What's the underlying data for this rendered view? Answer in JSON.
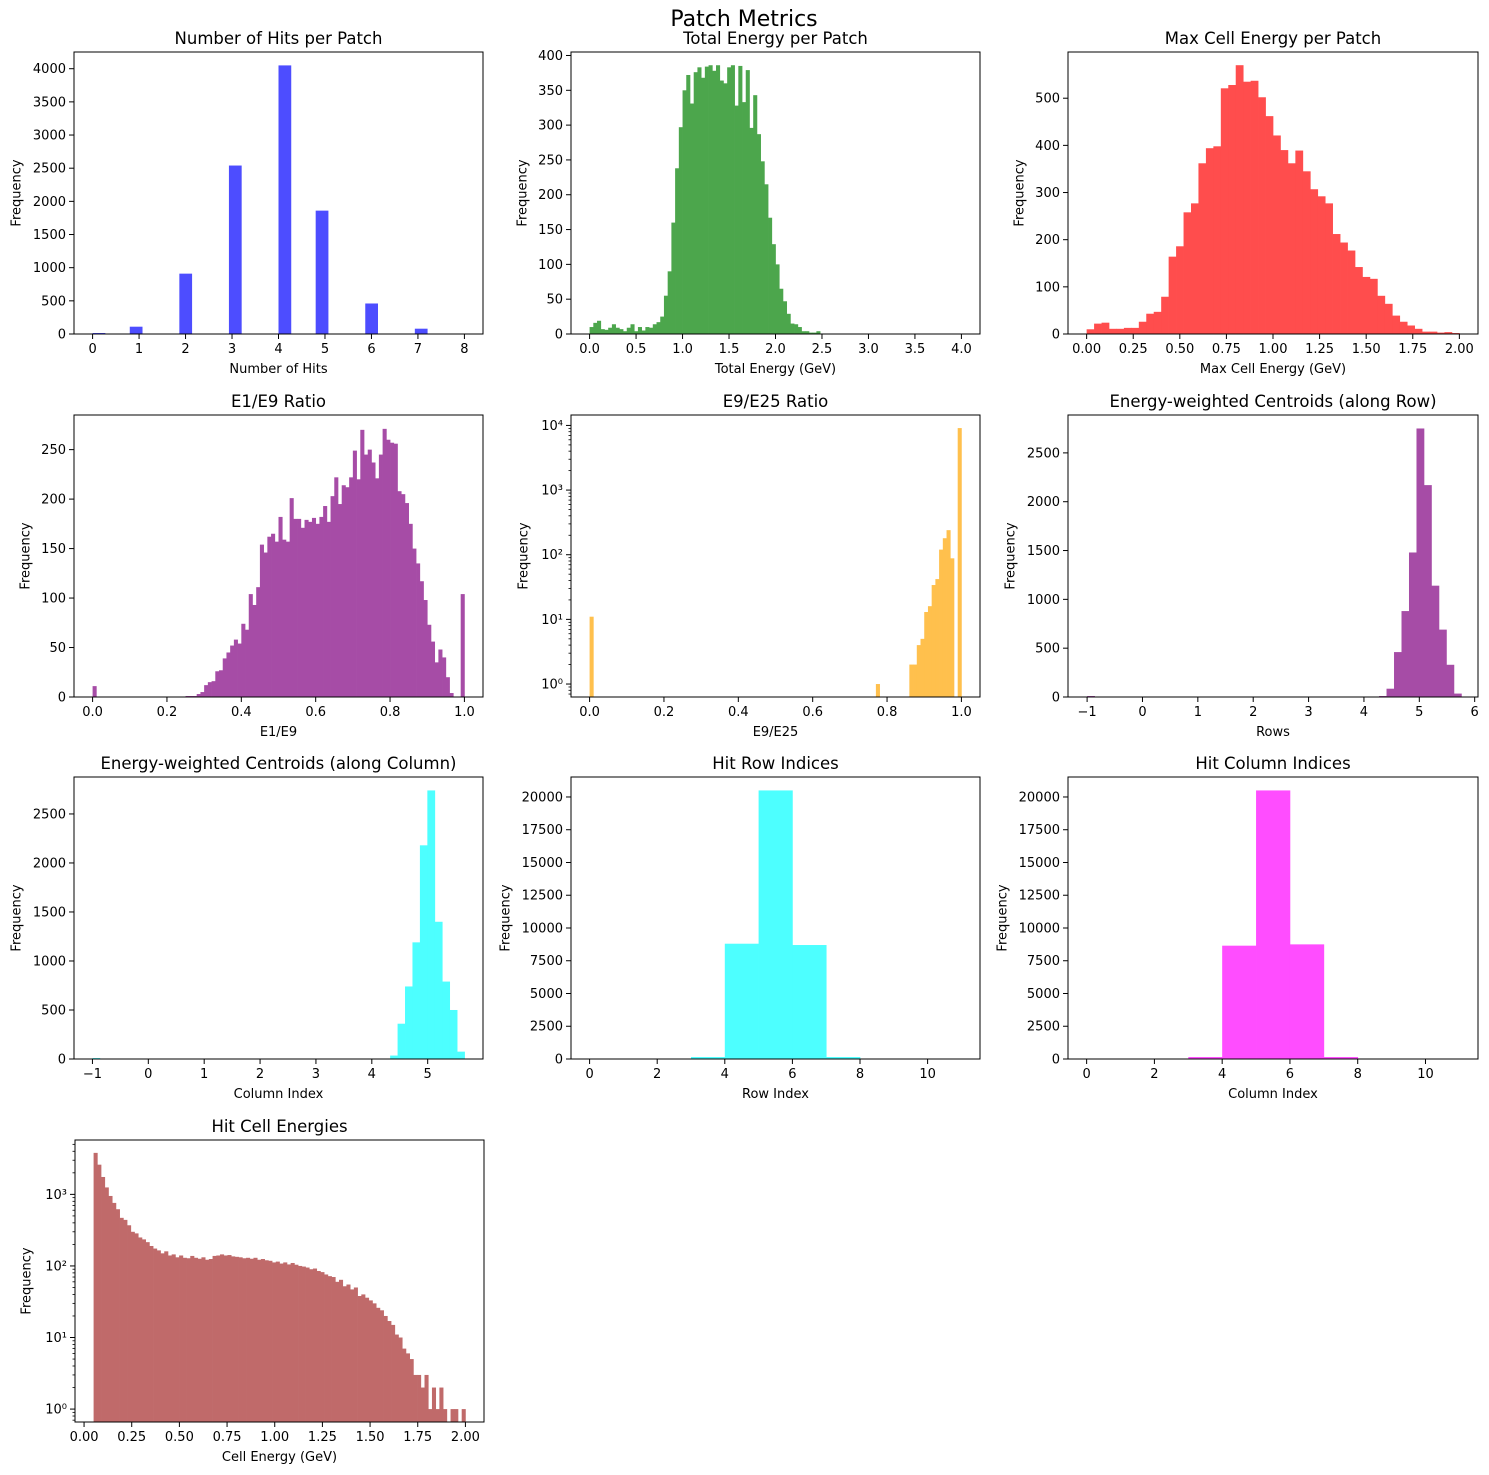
{
  "suptitle": "Patch Metrics",
  "chart_data": [
    {
      "type": "histogram",
      "title": "Number of Hits per Patch",
      "xlabel": "Number of Hits",
      "ylabel": "Frequency",
      "color": "#4d4dff",
      "yscale": "linear",
      "xlim": [
        -0.4,
        8.4
      ],
      "ylim": [
        0,
        4252
      ],
      "bin_start": 0,
      "bin_width": 0.26667,
      "counts": [
        15,
        0,
        0,
        110,
        0,
        0,
        0,
        910,
        0,
        0,
        0,
        2540,
        0,
        0,
        0,
        4050,
        0,
        0,
        1860,
        0,
        0,
        0,
        460,
        0,
        0,
        0,
        80,
        0,
        0,
        3
      ],
      "xticks": {
        "values": [
          0,
          1,
          2,
          3,
          4,
          5,
          6,
          7,
          8
        ],
        "labels": [
          "0",
          "1",
          "2",
          "3",
          "4",
          "5",
          "6",
          "7",
          "8"
        ]
      },
      "yticks": {
        "values": [
          0,
          500,
          1000,
          1500,
          2000,
          2500,
          3000,
          3500,
          4000
        ],
        "labels": [
          "0",
          "500",
          "1000",
          "1500",
          "2000",
          "2500",
          "3000",
          "3500",
          "4000"
        ]
      }
    },
    {
      "type": "histogram",
      "title": "Total Energy per Patch",
      "xlabel": "Total Energy (GeV)",
      "ylabel": "Frequency",
      "color": "#4ca64c",
      "yscale": "linear",
      "xlim": [
        -0.2,
        4.2
      ],
      "ylim": [
        0,
        405
      ],
      "bin_start": 0,
      "bin_width": 0.04,
      "counts": [
        10,
        16,
        19,
        7,
        6,
        9,
        14,
        9,
        7,
        4,
        9,
        14,
        4,
        10,
        5,
        10,
        9,
        14,
        17,
        25,
        55,
        90,
        160,
        238,
        297,
        350,
        372,
        331,
        376,
        383,
        368,
        384,
        386,
        378,
        386,
        364,
        360,
        383,
        386,
        328,
        385,
        333,
        379,
        296,
        343,
        287,
        248,
        215,
        167,
        129,
        100,
        65,
        47,
        29,
        15,
        14,
        10,
        4,
        4,
        2,
        2,
        4
      ],
      "xticks": {
        "values": [
          0,
          0.5,
          1,
          1.5,
          2,
          2.5,
          3,
          3.5,
          4
        ],
        "labels": [
          "0.0",
          "0.5",
          "1.0",
          "1.5",
          "2.0",
          "2.5",
          "3.0",
          "3.5",
          "4.0"
        ]
      },
      "yticks": {
        "values": [
          0,
          50,
          100,
          150,
          200,
          250,
          300,
          350,
          400
        ],
        "labels": [
          "0",
          "50",
          "100",
          "150",
          "200",
          "250",
          "300",
          "350",
          "400"
        ]
      }
    },
    {
      "type": "histogram",
      "title": "Max Cell Energy per Patch",
      "xlabel": "Max Cell Energy (GeV)",
      "ylabel": "Frequency",
      "color": "#ff4d4d",
      "yscale": "linear",
      "xlim": [
        -0.1,
        2.1
      ],
      "ylim": [
        0,
        598
      ],
      "bin_start": 0,
      "bin_width": 0.04,
      "counts": [
        10,
        22,
        24,
        11,
        11,
        13,
        13,
        26,
        43,
        47,
        79,
        164,
        186,
        258,
        277,
        362,
        394,
        398,
        521,
        528,
        570,
        535,
        537,
        502,
        462,
        421,
        390,
        362,
        389,
        345,
        307,
        292,
        277,
        212,
        194,
        177,
        142,
        121,
        117,
        81,
        64,
        39,
        26,
        18,
        11,
        5,
        5,
        3,
        4,
        2
      ],
      "xticks": {
        "values": [
          0,
          0.25,
          0.5,
          0.75,
          1,
          1.25,
          1.5,
          1.75,
          2
        ],
        "labels": [
          "0.00",
          "0.25",
          "0.50",
          "0.75",
          "1.00",
          "1.25",
          "1.50",
          "1.75",
          "2.00"
        ]
      },
      "yticks": {
        "values": [
          0,
          100,
          200,
          300,
          400,
          500
        ],
        "labels": [
          "0",
          "100",
          "200",
          "300",
          "400",
          "500"
        ]
      }
    },
    {
      "type": "histogram",
      "title": "E1/E9 Ratio",
      "xlabel": "E1/E9",
      "ylabel": "Frequency",
      "color": "#a64ca6",
      "yscale": "linear",
      "xlim": [
        -0.05,
        1.05
      ],
      "ylim": [
        0,
        285
      ],
      "bin_start": 0,
      "bin_width": 0.01,
      "counts": [
        11,
        0,
        0,
        0,
        0,
        0,
        0,
        0,
        0,
        0,
        0,
        0,
        0,
        0,
        0,
        0,
        0,
        0,
        0,
        0,
        0,
        0,
        0,
        0,
        0,
        1,
        1,
        1,
        3,
        5,
        12,
        15,
        16,
        26,
        27,
        39,
        45,
        52,
        58,
        54,
        74,
        68,
        104,
        93,
        111,
        154,
        146,
        162,
        165,
        157,
        182,
        159,
        157,
        201,
        180,
        180,
        171,
        179,
        177,
        181,
        175,
        182,
        193,
        177,
        203,
        222,
        195,
        214,
        212,
        222,
        249,
        220,
        270,
        245,
        250,
        237,
        221,
        245,
        271,
        260,
        257,
        256,
        208,
        205,
        196,
        175,
        150,
        135,
        117,
        98,
        73,
        56,
        35,
        48,
        40,
        20,
        4,
        0,
        0,
        104
      ],
      "xticks": {
        "values": [
          0,
          0.2,
          0.4,
          0.6,
          0.8,
          1
        ],
        "labels": [
          "0.0",
          "0.2",
          "0.4",
          "0.6",
          "0.8",
          "1.0"
        ]
      },
      "yticks": {
        "values": [
          0,
          50,
          100,
          150,
          200,
          250
        ],
        "labels": [
          "0",
          "50",
          "100",
          "150",
          "200",
          "250"
        ]
      }
    },
    {
      "type": "histogram",
      "title": "E9/E25 Ratio",
      "xlabel": "E9/E25",
      "ylabel": "Frequency",
      "color": "#ffc04d",
      "yscale": "log",
      "xlim": [
        -0.05,
        1.05
      ],
      "ylim": [
        0.63,
        14500
      ],
      "bin_width": 0.01,
      "bins": [
        [
          0.0,
          11
        ],
        [
          0.77,
          1
        ],
        [
          0.86,
          2
        ],
        [
          0.87,
          2
        ],
        [
          0.88,
          4
        ],
        [
          0.89,
          5
        ],
        [
          0.9,
          13
        ],
        [
          0.91,
          16
        ],
        [
          0.92,
          34
        ],
        [
          0.93,
          42
        ],
        [
          0.94,
          120
        ],
        [
          0.95,
          180
        ],
        [
          0.96,
          240
        ],
        [
          0.97,
          88
        ],
        [
          0.99,
          9100
        ]
      ],
      "xticks": {
        "values": [
          0,
          0.2,
          0.4,
          0.6,
          0.8,
          1
        ],
        "labels": [
          "0.0",
          "0.2",
          "0.4",
          "0.6",
          "0.8",
          "1.0"
        ]
      },
      "yticks": {
        "values": [
          1,
          10,
          100,
          1000,
          10000
        ],
        "labels": [
          "10⁰",
          "10¹",
          "10²",
          "10³",
          "10⁴"
        ]
      }
    },
    {
      "type": "histogram",
      "title": "Energy-weighted Centroids (along Row)",
      "xlabel": "Rows",
      "ylabel": "Frequency",
      "color": "#a64ca6",
      "yscale": "linear",
      "xlim": [
        -1.345,
        6.06
      ],
      "ylim": [
        0,
        2888
      ],
      "bin_start": -1,
      "bin_width": 0.1352,
      "counts": [
        10,
        0,
        0,
        0,
        0,
        0,
        0,
        0,
        0,
        0,
        0,
        0,
        0,
        0,
        0,
        0,
        0,
        0,
        0,
        0,
        0,
        0,
        0,
        0,
        0,
        0,
        0,
        0,
        0,
        0,
        0,
        0,
        0,
        0,
        0,
        0,
        0,
        0,
        0,
        10,
        85,
        460,
        880,
        1480,
        2750,
        2170,
        1140,
        690,
        330,
        35
      ],
      "xticks": {
        "values": [
          -1,
          0,
          1,
          2,
          3,
          4,
          5,
          6
        ],
        "labels": [
          "−1",
          "0",
          "1",
          "2",
          "3",
          "4",
          "5",
          "6"
        ]
      },
      "yticks": {
        "values": [
          0,
          500,
          1000,
          1500,
          2000,
          2500
        ],
        "labels": [
          "0",
          "500",
          "1000",
          "1500",
          "2000",
          "2500"
        ]
      }
    },
    {
      "type": "histogram",
      "title": "Energy-weighted Centroids (along Column)",
      "xlabel": "Column Index",
      "ylabel": "Frequency",
      "color": "#4dffff",
      "yscale": "linear",
      "xlim": [
        -1.33,
        5.99
      ],
      "ylim": [
        0,
        2877
      ],
      "bin_start": -1,
      "bin_width": 0.1332,
      "counts": [
        10,
        0,
        0,
        0,
        0,
        0,
        0,
        0,
        0,
        0,
        0,
        0,
        0,
        0,
        0,
        0,
        0,
        0,
        0,
        0,
        0,
        0,
        0,
        0,
        0,
        0,
        0,
        0,
        0,
        0,
        0,
        0,
        0,
        0,
        0,
        0,
        0,
        0,
        0,
        0,
        35,
        360,
        740,
        1190,
        2180,
        2740,
        1400,
        790,
        500,
        75
      ],
      "xticks": {
        "values": [
          -1,
          0,
          1,
          2,
          3,
          4,
          5
        ],
        "labels": [
          "−1",
          "0",
          "1",
          "2",
          "3",
          "4",
          "5"
        ]
      },
      "yticks": {
        "values": [
          0,
          500,
          1000,
          1500,
          2000,
          2500
        ],
        "labels": [
          "0",
          "500",
          "1000",
          "1500",
          "2000",
          "2500"
        ]
      }
    },
    {
      "type": "histogram",
      "title": "Hit Row Indices",
      "xlabel": "Row Index",
      "ylabel": "Frequency",
      "color": "#4dffff",
      "yscale": "linear",
      "xlim": [
        -0.55,
        11.55
      ],
      "ylim": [
        0,
        21525
      ],
      "bin_start": 0,
      "bin_width": 1,
      "counts": [
        0,
        0,
        0,
        150,
        8800,
        20500,
        8700,
        150,
        0,
        0,
        0
      ],
      "xticks": {
        "values": [
          0,
          2,
          4,
          6,
          8,
          10
        ],
        "labels": [
          "0",
          "2",
          "4",
          "6",
          "8",
          "10"
        ]
      },
      "yticks": {
        "values": [
          0,
          2500,
          5000,
          7500,
          10000,
          12500,
          15000,
          17500,
          20000
        ],
        "labels": [
          "0",
          "2500",
          "5000",
          "7500",
          "10000",
          "12500",
          "15000",
          "17500",
          "20000"
        ]
      }
    },
    {
      "type": "histogram",
      "title": "Hit Column Indices",
      "xlabel": "Column Index",
      "ylabel": "Frequency",
      "color": "#ff4dff",
      "yscale": "linear",
      "xlim": [
        -0.55,
        11.55
      ],
      "ylim": [
        0,
        21525
      ],
      "bin_start": 0,
      "bin_width": 1,
      "counts": [
        0,
        0,
        0,
        150,
        8650,
        20500,
        8750,
        150,
        0,
        0,
        0
      ],
      "xticks": {
        "values": [
          0,
          2,
          4,
          6,
          8,
          10
        ],
        "labels": [
          "0",
          "2",
          "4",
          "6",
          "8",
          "10"
        ]
      },
      "yticks": {
        "values": [
          0,
          2500,
          5000,
          7500,
          10000,
          12500,
          15000,
          17500,
          20000
        ],
        "labels": [
          "0",
          "2500",
          "5000",
          "7500",
          "10000",
          "12500",
          "15000",
          "17500",
          "20000"
        ]
      }
    },
    {
      "type": "histogram",
      "title": "Hit Cell Energies",
      "xlabel": "Cell Energy (GeV)",
      "ylabel": "Frequency",
      "color": "#c06a6a",
      "yscale": "log",
      "xlim": [
        -0.0475,
        2.0975
      ],
      "ylim": [
        0.66,
        5750
      ],
      "bin_start": 0.05,
      "bin_width": 0.0195,
      "counts": [
        3800,
        2600,
        1750,
        1250,
        950,
        760,
        620,
        470,
        440,
        370,
        300,
        285,
        250,
        235,
        215,
        190,
        175,
        165,
        150,
        160,
        140,
        145,
        132,
        140,
        130,
        128,
        138,
        130,
        126,
        132,
        122,
        125,
        138,
        140,
        145,
        140,
        142,
        136,
        134,
        132,
        128,
        130,
        126,
        130,
        122,
        125,
        120,
        118,
        112,
        115,
        108,
        112,
        105,
        110,
        104,
        100,
        98,
        95,
        90,
        92,
        85,
        82,
        76,
        72,
        70,
        60,
        64,
        52,
        55,
        47,
        50,
        38,
        40,
        36,
        33,
        30,
        26,
        24,
        20,
        17,
        15,
        11,
        10,
        7,
        6,
        5,
        3,
        3,
        2,
        3,
        1,
        2,
        1,
        2,
        1,
        0,
        1,
        1,
        0,
        1
      ],
      "xticks": {
        "values": [
          0,
          0.25,
          0.5,
          0.75,
          1,
          1.25,
          1.5,
          1.75,
          2
        ],
        "labels": [
          "0.00",
          "0.25",
          "0.50",
          "0.75",
          "1.00",
          "1.25",
          "1.50",
          "1.75",
          "2.00"
        ]
      },
      "yticks": {
        "values": [
          1,
          10,
          100,
          1000
        ],
        "labels": [
          "10⁰",
          "10¹",
          "10²",
          "10³"
        ]
      }
    }
  ]
}
